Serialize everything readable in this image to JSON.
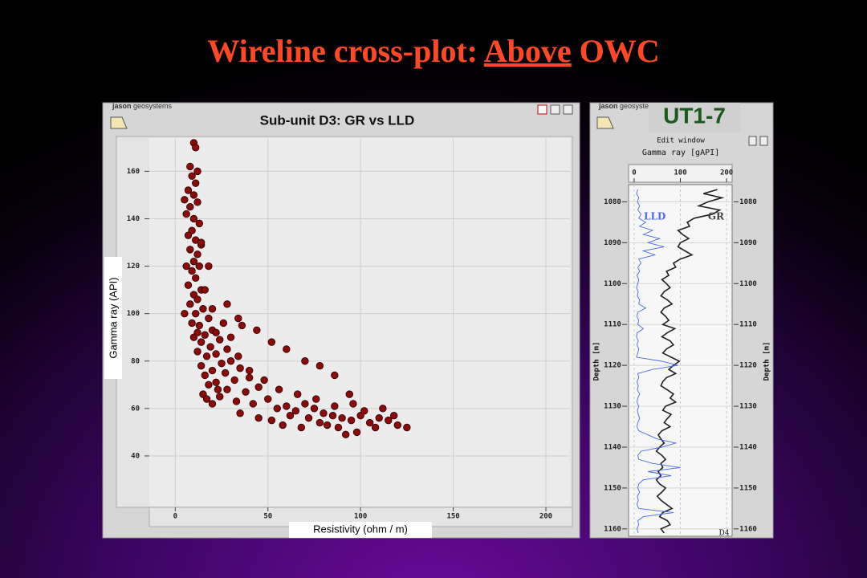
{
  "title": {
    "prefix": "Wireline cross-plot:",
    "underlined": "Above",
    "suffix": "OWC"
  },
  "brand": {
    "name": "jason",
    "sub": "geosystems"
  },
  "chart_data": [
    {
      "type": "scatter",
      "title": "Sub-unit D3:  GR vs LLD",
      "xlabel": "Resistivity  (ohm / m)",
      "ylabel": "Gamma ray  (API)",
      "color": "#8b0a0a",
      "grid": true,
      "xlim": [
        -14,
        213
      ],
      "xticks": [
        0,
        50,
        100,
        150,
        200
      ],
      "ylim": [
        19,
        174
      ],
      "yticks": [
        40,
        60,
        80,
        100,
        120,
        140,
        160
      ],
      "x": [
        10,
        11,
        8,
        12,
        9,
        11,
        7,
        10,
        12,
        8,
        6,
        10,
        13,
        9,
        7,
        11,
        14,
        8,
        12,
        10,
        13,
        9,
        11,
        7,
        14,
        10,
        12,
        8,
        15,
        11,
        18,
        9,
        13,
        20,
        16,
        10,
        24,
        14,
        19,
        28,
        12,
        22,
        17,
        30,
        25,
        14,
        35,
        20,
        27,
        16,
        40,
        32,
        22,
        18,
        45,
        28,
        38,
        15,
        24,
        50,
        33,
        42,
        20,
        60,
        55,
        70,
        65,
        75,
        80,
        85,
        90,
        95,
        100,
        105,
        110,
        115,
        120,
        125,
        98,
        92,
        88,
        78,
        72,
        62,
        58,
        68,
        82,
        108,
        118,
        112,
        102,
        96,
        86,
        76,
        66,
        56,
        48,
        40,
        34,
        30,
        26,
        22,
        36,
        44,
        52,
        60,
        70,
        78,
        86,
        94,
        28,
        34,
        20,
        16,
        18,
        14,
        5,
        6,
        5,
        17,
        23,
        45,
        52,
        35,
        12
      ],
      "values": [
        172,
        170,
        162,
        160,
        158,
        155,
        152,
        150,
        147,
        145,
        142,
        140,
        138,
        135,
        133,
        131,
        129,
        127,
        125,
        122,
        120,
        118,
        115,
        112,
        110,
        108,
        106,
        104,
        102,
        100,
        98,
        96,
        95,
        93,
        91,
        90,
        89,
        88,
        86,
        85,
        84,
        83,
        82,
        80,
        79,
        78,
        77,
        76,
        75,
        74,
        73,
        72,
        71,
        70,
        69,
        68,
        67,
        66,
        65,
        64,
        63,
        62,
        62,
        61,
        60,
        62,
        59,
        60,
        58,
        57,
        56,
        55,
        57,
        54,
        56,
        55,
        53,
        52,
        50,
        49,
        52,
        54,
        56,
        57,
        53,
        52,
        53,
        52,
        57,
        60,
        59,
        62,
        61,
        64,
        66,
        68,
        72,
        76,
        82,
        90,
        96,
        92,
        95,
        93,
        88,
        85,
        80,
        78,
        74,
        66,
        104,
        98,
        102,
        110,
        120,
        130,
        148,
        120,
        100,
        64,
        68,
        56,
        55,
        58,
        92
      ]
    },
    {
      "type": "line",
      "orientation": "vertical",
      "well": "UT1-7",
      "subtitle": "Edit window",
      "title": "Gamma ray [gAPI]",
      "ylabel": "Depth [m]",
      "zone": "D4",
      "valuelim": [
        -12,
        212
      ],
      "valueticks": [
        0,
        100,
        200
      ],
      "depthlim": [
        1075.8,
        1161.8
      ],
      "depthticks": [
        1080,
        1090,
        1100,
        1110,
        1120,
        1130,
        1140,
        1150,
        1160
      ],
      "depth": [
        1077,
        1078,
        1079,
        1080,
        1081,
        1082,
        1083,
        1084,
        1085,
        1086,
        1087,
        1088,
        1089,
        1090,
        1091,
        1092,
        1093,
        1094,
        1095,
        1096,
        1097,
        1098,
        1099,
        1100,
        1101,
        1102,
        1103,
        1104,
        1105,
        1106,
        1107,
        1108,
        1109,
        1110,
        1111,
        1112,
        1113,
        1114,
        1115,
        1116,
        1117,
        1118,
        1119,
        1120,
        1121,
        1122,
        1123,
        1124,
        1125,
        1126,
        1127,
        1128,
        1129,
        1130,
        1131,
        1132,
        1133,
        1134,
        1135,
        1136,
        1137,
        1138,
        1139,
        1140,
        1141,
        1142,
        1143,
        1144,
        1145,
        1146,
        1147,
        1148,
        1149,
        1150,
        1151,
        1152,
        1153,
        1154,
        1155,
        1156,
        1157,
        1158,
        1159,
        1160,
        1161
      ],
      "series": [
        {
          "name": "GR",
          "color": "#222222",
          "values": [
            180,
            150,
            190,
            160,
            140,
            185,
            170,
            130,
            115,
            120,
            95,
            105,
            118,
            100,
            95,
            110,
            125,
            100,
            85,
            90,
            70,
            75,
            60,
            70,
            78,
            65,
            58,
            72,
            82,
            65,
            58,
            68,
            75,
            62,
            88,
            72,
            60,
            78,
            85,
            70,
            62,
            80,
            98,
            85,
            75,
            90,
            70,
            62,
            58,
            72,
            85,
            78,
            90,
            68,
            62,
            80,
            72,
            65,
            78,
            60,
            52,
            58,
            65,
            55,
            48,
            60,
            68,
            58,
            62,
            52,
            58,
            48,
            55,
            68,
            60,
            50,
            58,
            70,
            82,
            62,
            55,
            72,
            78,
            58,
            65
          ]
        },
        {
          "name": "LLD",
          "color": "#4a6ae8",
          "values": [
            8,
            5,
            10,
            7,
            12,
            8,
            15,
            10,
            25,
            12,
            40,
            20,
            55,
            30,
            65,
            20,
            45,
            10,
            15,
            8,
            12,
            6,
            10,
            8,
            5,
            9,
            7,
            12,
            10,
            25,
            8,
            6,
            10,
            8,
            20,
            7,
            5,
            9,
            6,
            10,
            8,
            5,
            60,
            95,
            40,
            8,
            10,
            6,
            9,
            7,
            12,
            8,
            6,
            10,
            7,
            9,
            12,
            8,
            6,
            10,
            30,
            50,
            90,
            60,
            15,
            8,
            10,
            40,
            100,
            30,
            80,
            20,
            10,
            8,
            12,
            7,
            9,
            6,
            10,
            85,
            20,
            8,
            10,
            6,
            9
          ]
        }
      ]
    }
  ]
}
